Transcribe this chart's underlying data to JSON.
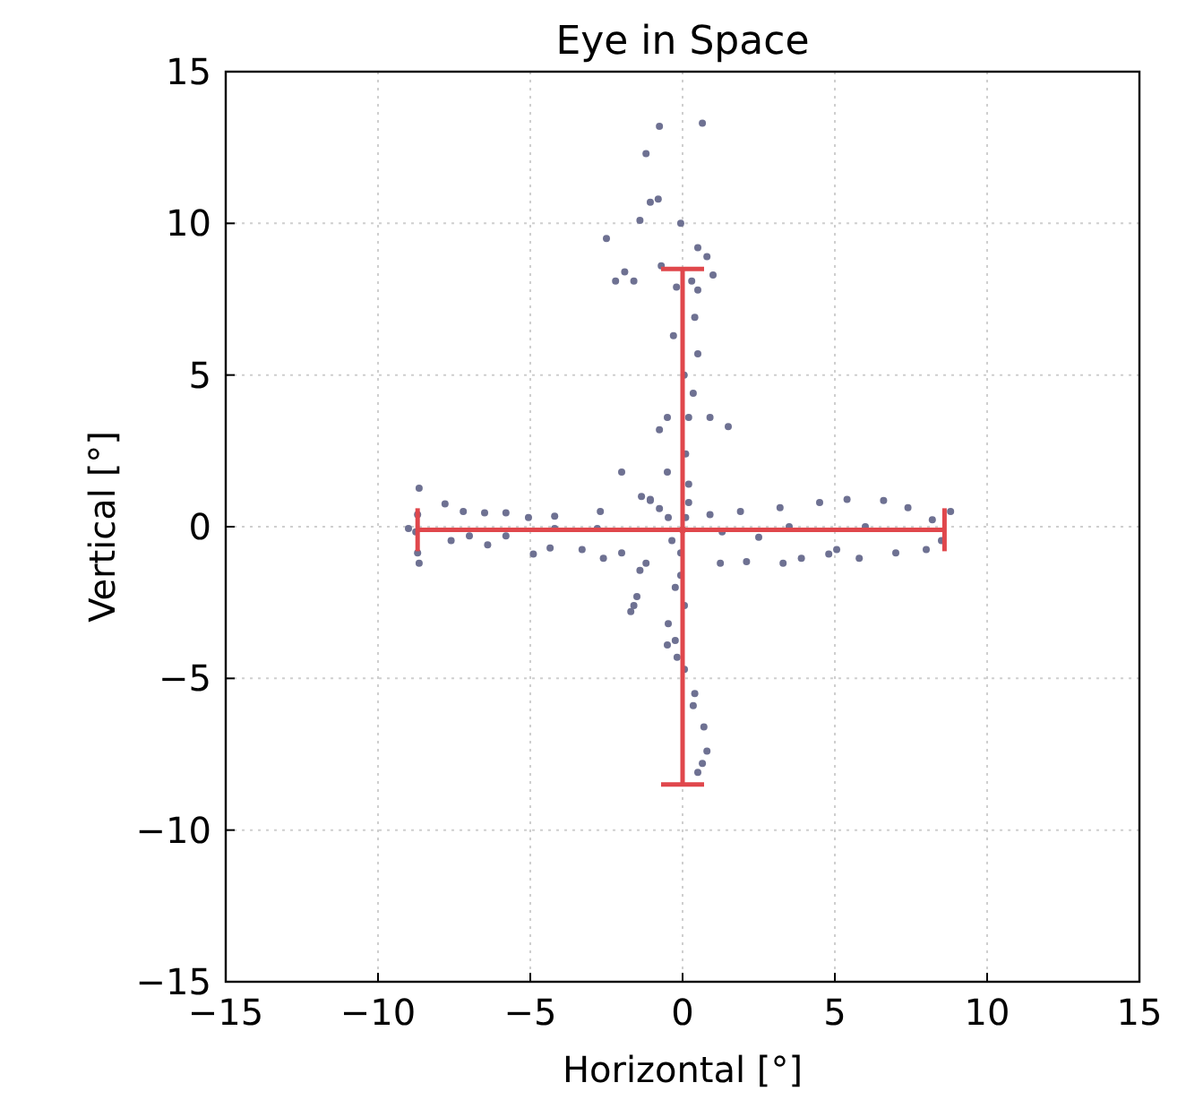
{
  "chart_data": {
    "type": "scatter",
    "title": "Eye in Space",
    "xlabel": "Horizontal [°]",
    "ylabel": "Vertical [°]",
    "xlim": [
      -15,
      15
    ],
    "ylim": [
      -15,
      15
    ],
    "xticks": [
      {
        "value": -15,
        "label": "−15"
      },
      {
        "value": -10,
        "label": "−10"
      },
      {
        "value": -5,
        "label": "−5"
      },
      0,
      5,
      10,
      15
    ],
    "yticks": [
      {
        "value": -15,
        "label": "−15"
      },
      {
        "value": -10,
        "label": "−10"
      },
      {
        "value": -5,
        "label": "−5"
      },
      0,
      5,
      10,
      15
    ],
    "grid": true,
    "marker": "circle",
    "series": [
      {
        "color": "#6e7192",
        "x": [
          -0.76,
          0.65,
          -1.2,
          -0.8,
          -1.4,
          -1.06,
          -2.5,
          0.5,
          0.8,
          -0.06,
          -0.7,
          0.3,
          1.0,
          0.5,
          -0.2,
          -2.2,
          -1.9,
          -1.6,
          0.4,
          -0.3,
          0.5,
          0.05,
          0.35,
          -0.5,
          0.2,
          0.9,
          -0.76,
          1.5,
          0.1,
          -2.0,
          -0.5,
          0.2,
          0.2,
          0.1,
          -1.06,
          -0.76,
          -8.65,
          -8.7,
          -8.76,
          -8.7,
          -8.65,
          -9.0,
          -7.8,
          -7.2,
          -6.5,
          -5.8,
          -5.06,
          -4.2,
          -2.7,
          -7.6,
          -7.0,
          -6.4,
          -5.8,
          -4.9,
          -4.35,
          -3.3,
          -2.6,
          -2.0,
          -2.8,
          -4.2,
          -1.35,
          -1.06,
          -0.47,
          -0.35,
          -1.2,
          -1.4,
          -0.06,
          -0.06,
          -0.24,
          -1.5,
          -1.6,
          0.06,
          -0.47,
          -0.24,
          -0.18,
          0.06,
          0.4,
          0.35,
          0.7,
          0.8,
          0.65,
          0.5,
          -0.5,
          -1.7,
          0.9,
          1.3,
          2.5,
          1.9,
          3.2,
          4.5,
          5.4,
          6.6,
          7.4,
          8.2,
          8.8,
          8.0,
          8.5,
          4.8,
          5.06,
          1.24,
          2.1,
          3.3,
          3.9,
          5.8,
          7.0,
          3.5,
          6.0
        ],
        "values": [
          13.2,
          13.3,
          12.3,
          10.8,
          10.1,
          10.7,
          9.5,
          9.2,
          8.9,
          10.0,
          8.6,
          8.1,
          8.3,
          7.8,
          7.9,
          8.1,
          8.4,
          8.1,
          6.9,
          6.3,
          5.7,
          5.0,
          4.4,
          3.6,
          3.6,
          3.6,
          3.2,
          3.3,
          2.4,
          1.8,
          1.8,
          1.4,
          0.8,
          0.3,
          0.9,
          0.6,
          1.27,
          0.4,
          -0.17,
          -0.86,
          -1.2,
          -0.06,
          0.75,
          0.5,
          0.46,
          0.46,
          0.3,
          0.35,
          0.5,
          -0.46,
          -0.3,
          -0.6,
          -0.3,
          -0.9,
          -0.7,
          -0.75,
          -1.04,
          -0.86,
          -0.06,
          -0.06,
          1.0,
          0.86,
          0.3,
          -0.46,
          -1.2,
          -1.44,
          -0.86,
          -1.6,
          -2.0,
          -2.3,
          -2.6,
          -2.6,
          -3.2,
          -3.75,
          -4.3,
          -4.7,
          -5.5,
          -5.9,
          -6.6,
          -7.4,
          -7.8,
          -8.1,
          -3.9,
          -2.8,
          0.4,
          -0.17,
          -0.35,
          0.5,
          0.63,
          0.8,
          0.9,
          0.86,
          0.63,
          0.23,
          0.5,
          -0.75,
          -0.46,
          -0.9,
          -0.75,
          -1.2,
          -1.15,
          -1.2,
          -1.04,
          -1.04,
          -0.86,
          0,
          0
        ]
      },
      {
        "color": "#e0474c",
        "x": [
          0
        ],
        "values": [
          -0.1
        ],
        "errors": [
          [
            -8.5,
            8.5
          ]
        ],
        "xerrors": [
          [
            -8.7,
            8.6
          ]
        ]
      }
    ]
  }
}
